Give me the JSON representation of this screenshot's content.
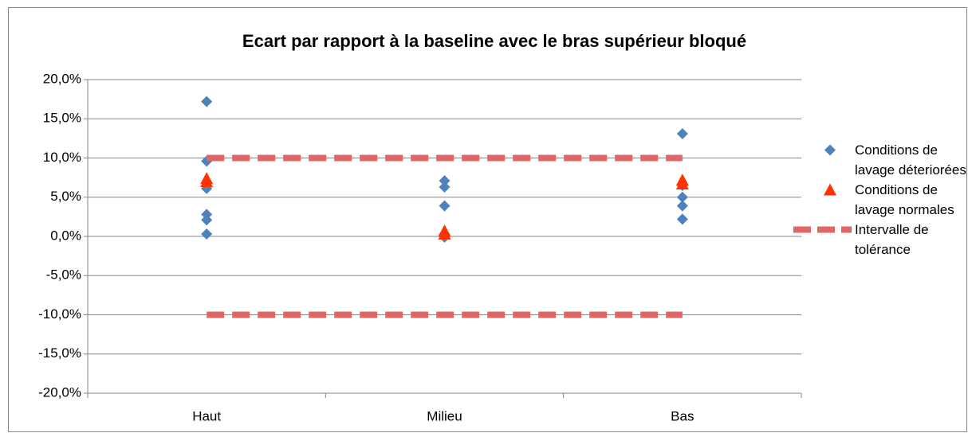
{
  "chart_data": {
    "type": "scatter",
    "title": "Ecart par rapport à la baseline avec le bras supérieur bloqué",
    "categories": [
      "Haut",
      "Milieu",
      "Bas"
    ],
    "ylim": [
      -20,
      20
    ],
    "yticks": [
      {
        "value": -20,
        "label": "-20,0%"
      },
      {
        "value": -15,
        "label": "-15,0%"
      },
      {
        "value": -10,
        "label": "-10,0%"
      },
      {
        "value": -5,
        "label": "-5,0%"
      },
      {
        "value": 0,
        "label": "0,0%"
      },
      {
        "value": 5,
        "label": "5,0%"
      },
      {
        "value": 10,
        "label": "10,0%"
      },
      {
        "value": 15,
        "label": "15,0%"
      },
      {
        "value": 20,
        "label": "20,0%"
      }
    ],
    "grid": true,
    "legend": "right",
    "series": [
      {
        "name": "Conditions de lavage déteriorées",
        "color": "#4f81bd",
        "marker": "diamond",
        "values": [
          [
            17.2,
            9.6,
            6.1,
            2.8,
            2.1,
            0.3
          ],
          [
            7.1,
            6.3,
            3.9,
            0.3,
            -0.1
          ],
          [
            13.1,
            6.5,
            5.0,
            3.9,
            2.2
          ]
        ]
      },
      {
        "name": "Conditions de lavage normales",
        "color": "#ff3300",
        "marker": "triangle",
        "values": [
          [
            7.4,
            7.0
          ],
          [
            0.7,
            0.3
          ],
          [
            7.2,
            6.7
          ]
        ]
      },
      {
        "name": "Intervalle de tolérance",
        "color": "#e06666",
        "marker": "dash",
        "values": [
          [
            10,
            -10
          ],
          [
            10,
            -10
          ],
          [
            10,
            -10
          ]
        ]
      }
    ]
  }
}
